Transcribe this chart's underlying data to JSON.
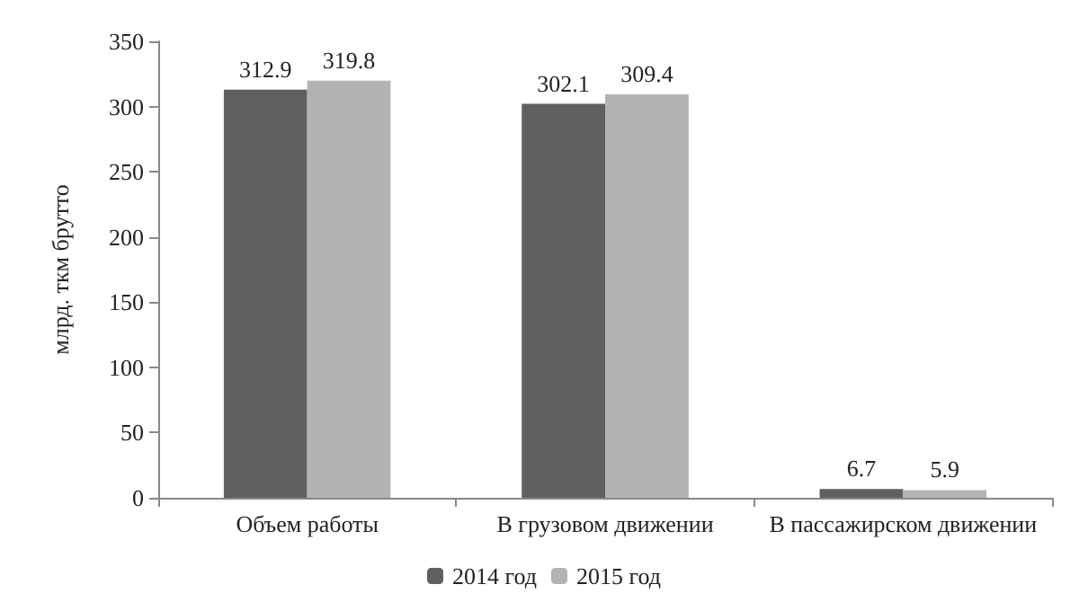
{
  "chart_data": {
    "type": "bar",
    "ylabel": "млрд. ткм брутто",
    "categories": [
      "Объем работы",
      "В грузовом движении",
      "В пассажирском движении"
    ],
    "series": [
      {
        "name": "2014 год",
        "color": "#606060",
        "values": [
          312.9,
          302.1,
          6.7
        ]
      },
      {
        "name": "2015 год",
        "color": "#b3b3b3",
        "values": [
          319.8,
          309.4,
          5.9
        ]
      }
    ],
    "ylim": [
      0,
      350
    ],
    "yticks": [
      0,
      50,
      100,
      150,
      200,
      250,
      300,
      350
    ],
    "data_labels": true,
    "legend": "bottom",
    "grid": false
  }
}
